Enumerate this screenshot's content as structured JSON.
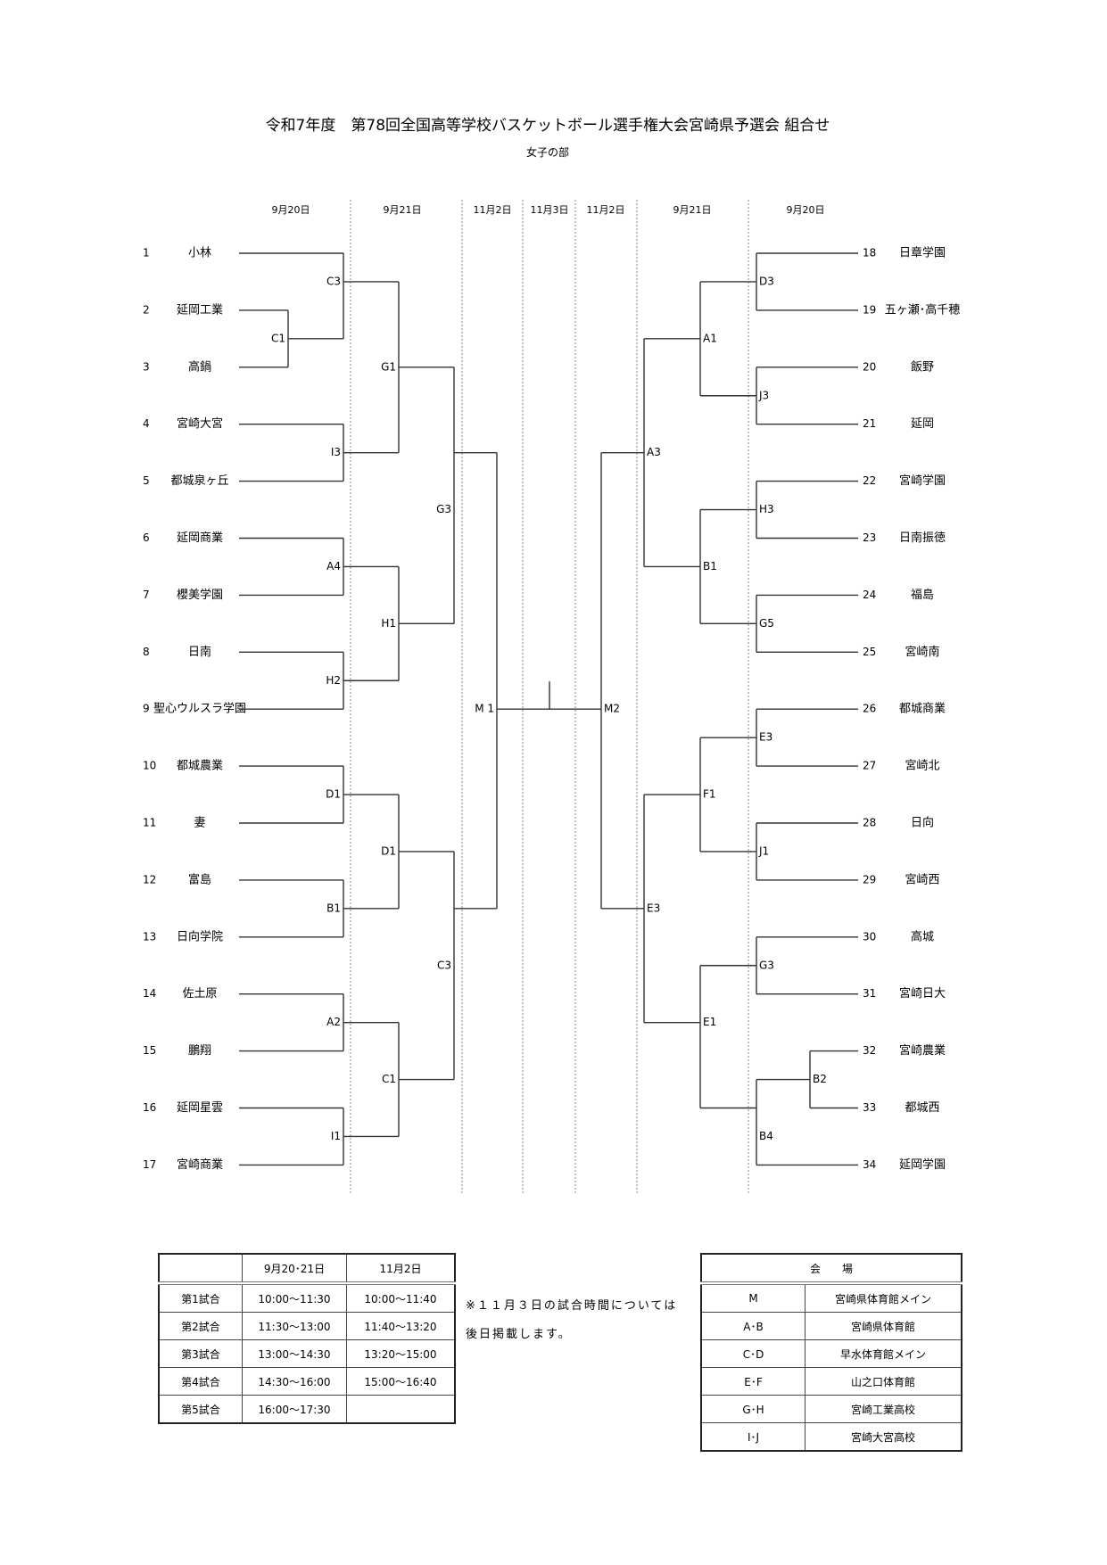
{
  "header": {
    "title": "令和7年度　第78回全国高等学校バスケットボール選手権大会宮崎県予選会 組合せ",
    "subtitle": "女子の部"
  },
  "dates": [
    "9月20日",
    "9月21日",
    "11月2日",
    "11月3日",
    "11月2日",
    "9月21日",
    "9月20日"
  ],
  "bracket": {
    "left_teams": [
      {
        "no": "1",
        "name": "小林"
      },
      {
        "no": "2",
        "name": "延岡工業"
      },
      {
        "no": "3",
        "name": "高鍋"
      },
      {
        "no": "4",
        "name": "宮崎大宮"
      },
      {
        "no": "5",
        "name": "都城泉ヶ丘"
      },
      {
        "no": "6",
        "name": "延岡商業"
      },
      {
        "no": "7",
        "name": "櫻美学園"
      },
      {
        "no": "8",
        "name": "日南"
      },
      {
        "no": "9",
        "name": "聖心ウルスラ学園"
      },
      {
        "no": "10",
        "name": "都城農業"
      },
      {
        "no": "11",
        "name": "妻"
      },
      {
        "no": "12",
        "name": "富島"
      },
      {
        "no": "13",
        "name": "日向学院"
      },
      {
        "no": "14",
        "name": "佐土原"
      },
      {
        "no": "15",
        "name": "鵬翔"
      },
      {
        "no": "16",
        "name": "延岡星雲"
      },
      {
        "no": "17",
        "name": "宮崎商業"
      }
    ],
    "right_teams": [
      {
        "no": "18",
        "name": "日章学園"
      },
      {
        "no": "19",
        "name": "五ヶ瀬･高千穂"
      },
      {
        "no": "20",
        "name": "飯野"
      },
      {
        "no": "21",
        "name": "延岡"
      },
      {
        "no": "22",
        "name": "宮崎学園"
      },
      {
        "no": "23",
        "name": "日南振徳"
      },
      {
        "no": "24",
        "name": "福島"
      },
      {
        "no": "25",
        "name": "宮崎南"
      },
      {
        "no": "26",
        "name": "都城商業"
      },
      {
        "no": "27",
        "name": "宮崎北"
      },
      {
        "no": "28",
        "name": "日向"
      },
      {
        "no": "29",
        "name": "宮崎西"
      },
      {
        "no": "30",
        "name": "高城"
      },
      {
        "no": "31",
        "name": "宮崎日大"
      },
      {
        "no": "32",
        "name": "宮崎農業"
      },
      {
        "no": "33",
        "name": "都城西"
      },
      {
        "no": "34",
        "name": "延岡学園"
      }
    ],
    "left_matches": {
      "prelim": [
        "C1"
      ],
      "round1": [
        "C3",
        "I3",
        "A4",
        "H2",
        "D1",
        "B1",
        "A2",
        "I1"
      ],
      "round2": [
        "G1",
        "H1",
        "D1",
        "C1"
      ],
      "round3": [
        "G3",
        "C3"
      ],
      "semifinal": "M 1"
    },
    "right_matches": {
      "prelim": [
        "B2"
      ],
      "round1": [
        "D3",
        "J3",
        "H3",
        "G5",
        "E3",
        "J1",
        "G3",
        "B4"
      ],
      "round2": [
        "A1",
        "B1",
        "F1",
        "E1"
      ],
      "round3": [
        "A3",
        "E3"
      ],
      "semifinal": "M2"
    }
  },
  "schedule": {
    "headers": [
      "",
      "9月20･21日",
      "11月2日"
    ],
    "rows": [
      [
        "第1試合",
        "10:00～11:30",
        "10:00～11:40"
      ],
      [
        "第2試合",
        "11:30～13:00",
        "11:40～13:20"
      ],
      [
        "第3試合",
        "13:00～14:30",
        "13:20～15:00"
      ],
      [
        "第4試合",
        "14:30～16:00",
        "15:00～16:40"
      ],
      [
        "第5試合",
        "16:00～17:30",
        ""
      ]
    ],
    "note_line1": "※１１月３日の試合時間については",
    "note_line2": "後日掲載します。"
  },
  "venues": {
    "header": "会　　場",
    "rows": [
      [
        "M",
        "宮崎県体育館メイン"
      ],
      [
        "A･B",
        "宮崎県体育館"
      ],
      [
        "C･D",
        "早水体育館メイン"
      ],
      [
        "E･F",
        "山之口体育館"
      ],
      [
        "G･H",
        "宮崎工業高校"
      ],
      [
        "I･J",
        "宮崎大宮高校"
      ]
    ]
  }
}
